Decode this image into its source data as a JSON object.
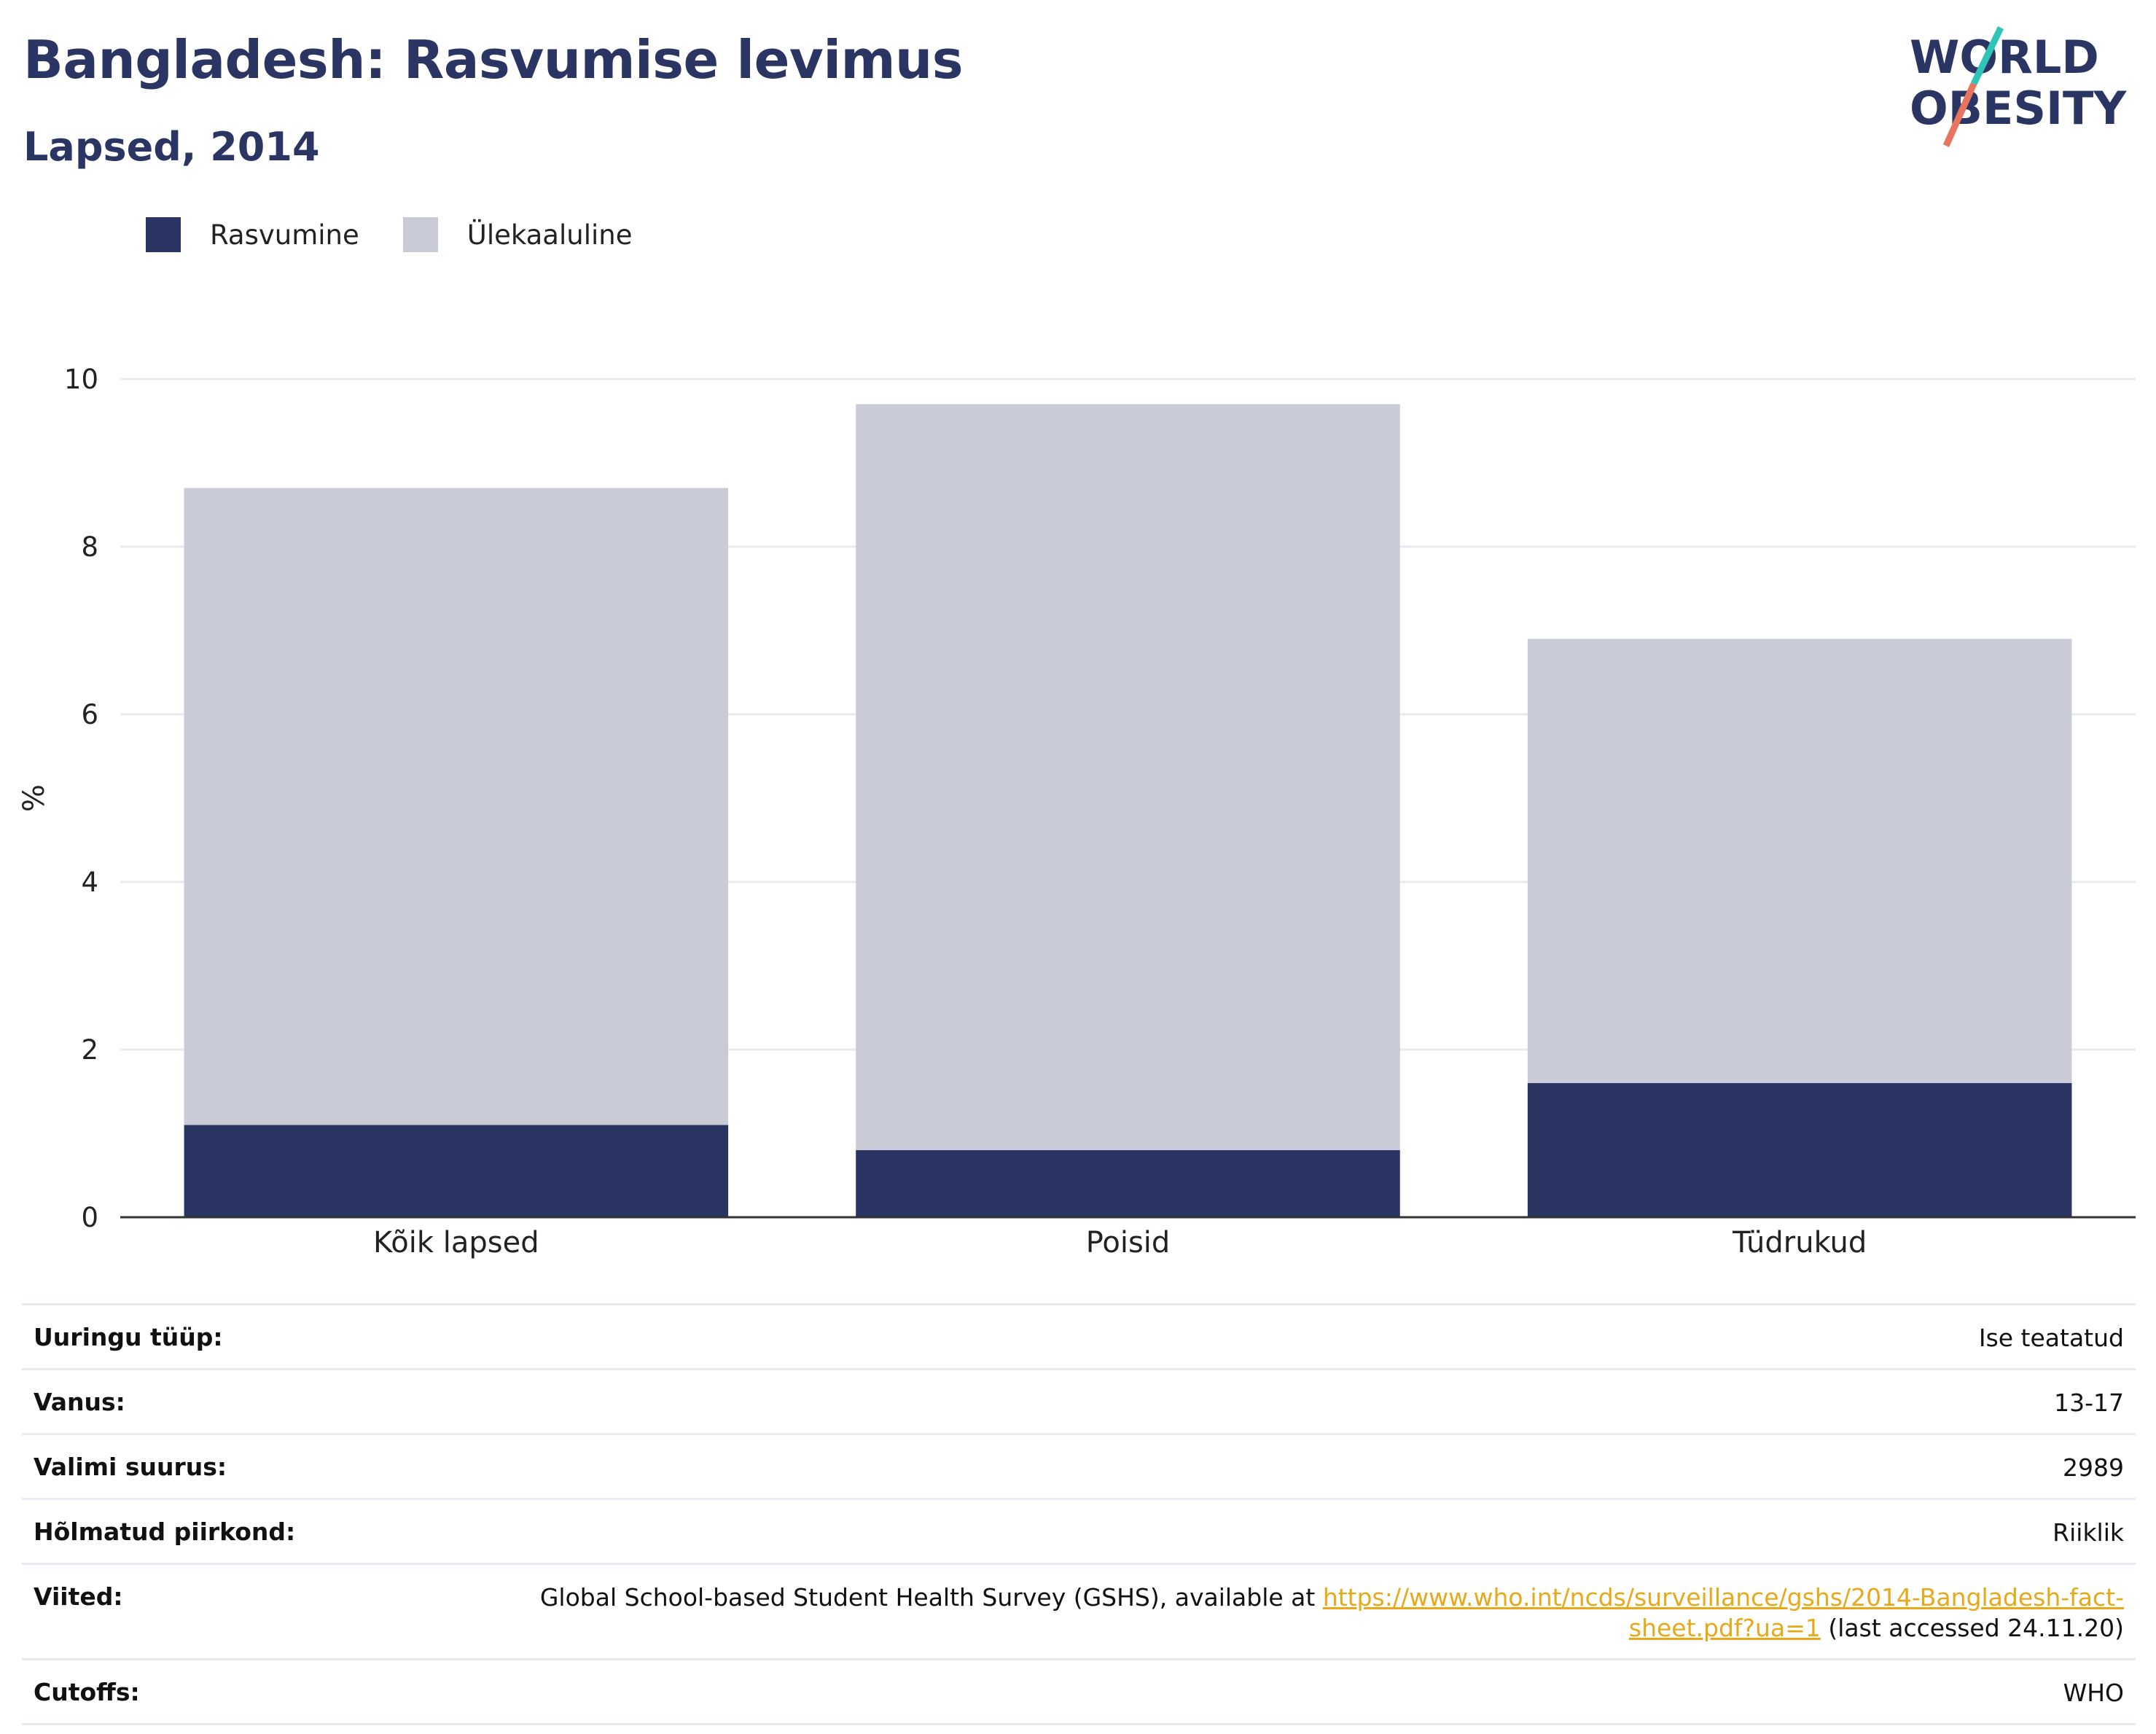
{
  "header": {
    "title": "Bangladesh: Rasvumise levimus",
    "subtitle": "Lapsed, 2014"
  },
  "logo": {
    "line1": "WORLD",
    "line2": "OBESITY"
  },
  "colors": {
    "obesity": "#2a3564",
    "overweight": "#c9cbd6",
    "accent_teal": "#2ec4b6",
    "accent_coral": "#e8735e",
    "link": "#e7a91a"
  },
  "chart_data": {
    "type": "bar",
    "stacked": true,
    "categories": [
      "Kõik lapsed",
      "Poisid",
      "Tüdrukud"
    ],
    "series": [
      {
        "name": "Rasvumine",
        "values": [
          1.1,
          0.8,
          1.6
        ],
        "color": "#2a3564"
      },
      {
        "name": "Ülekaaluline",
        "values": [
          7.6,
          8.9,
          5.3
        ],
        "color": "#c9cbd6"
      }
    ],
    "ylabel": "%",
    "xlabel": "",
    "ylim": [
      0,
      10
    ],
    "yticks": [
      0,
      2,
      4,
      6,
      8,
      10
    ],
    "grid": true,
    "legend_position": "top-left"
  },
  "info": [
    {
      "key": "Uuringu tüüp:",
      "value": "Ise teatatud"
    },
    {
      "key": "Vanus:",
      "value": "13-17"
    },
    {
      "key": "Valimi suurus:",
      "value": "2989"
    },
    {
      "key": "Hõlmatud piirkond:",
      "value": "Riiklik"
    },
    {
      "key": "Viited:",
      "value_prefix": "Global School-based Student Health Survey (GSHS), available at ",
      "link": "https://www.who.int/ncds/surveillance/gshs/2014-Bangladesh-fact-sheet.pdf?ua=1",
      "value_suffix": " (last accessed 24.11.20)"
    },
    {
      "key": "Cutoffs:",
      "value": "WHO"
    }
  ]
}
